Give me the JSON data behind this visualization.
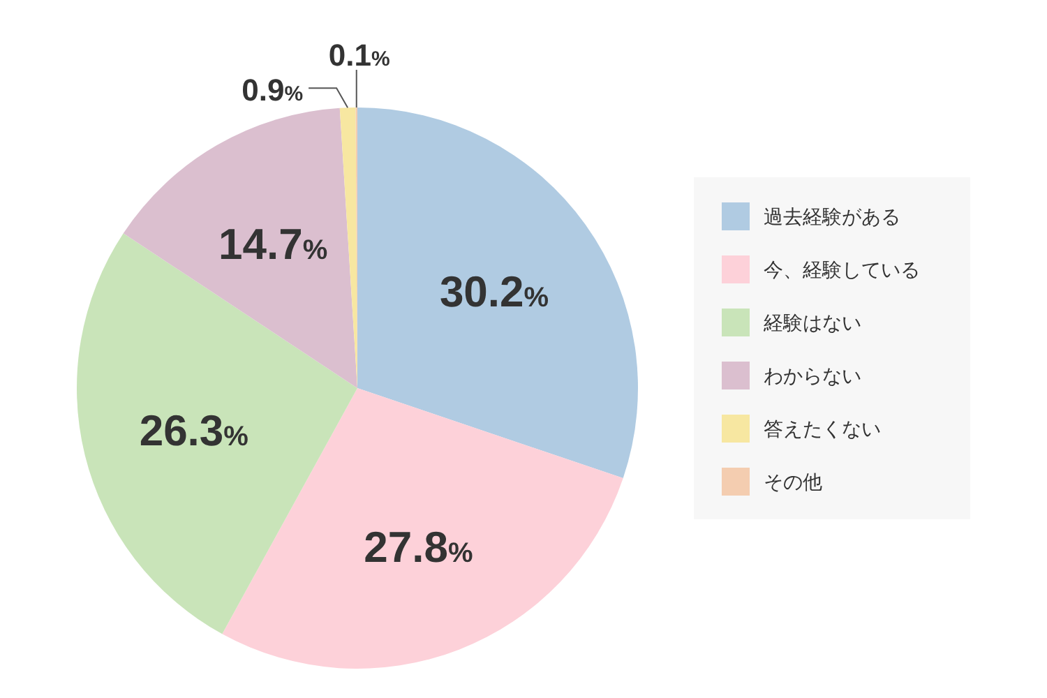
{
  "chart_data": {
    "type": "pie",
    "categories": [
      "過去経験がある",
      "今、経験している",
      "経験はない",
      "わからない",
      "答えたくない",
      "その他"
    ],
    "values": [
      30.2,
      27.8,
      26.3,
      14.7,
      0.9,
      0.1
    ],
    "colors": [
      "#b0cbe2",
      "#fdd1d9",
      "#c9e4b9",
      "#dbbfcf",
      "#f7e7a1",
      "#f4cdb0"
    ],
    "value_labels": [
      "30.2%",
      "27.8%",
      "26.3%",
      "14.7%",
      "0.9%",
      "0.1%"
    ],
    "legend": "right"
  }
}
